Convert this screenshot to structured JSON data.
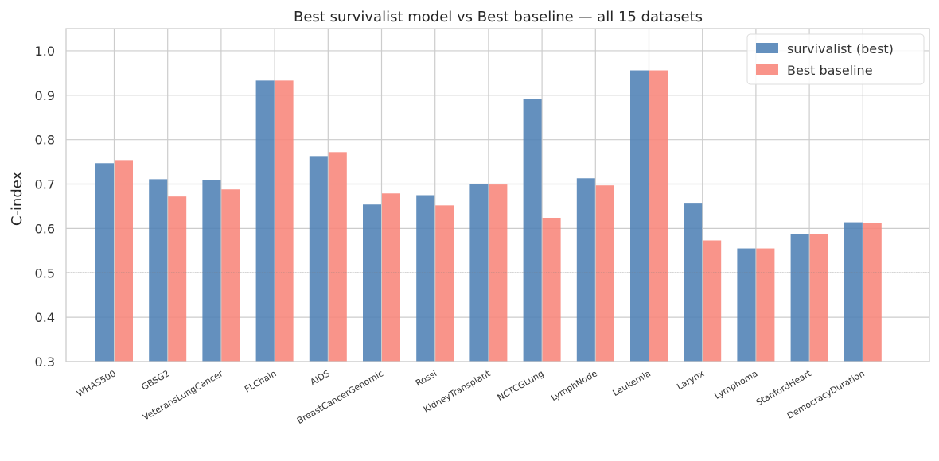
{
  "chart_data": {
    "type": "bar",
    "title": "Best survivalist model vs Best baseline — all 15 datasets",
    "xlabel": "",
    "ylabel": "C-index",
    "ylim": [
      0.3,
      1.05
    ],
    "yticks": [
      "0.3",
      "0.4",
      "0.5",
      "0.6",
      "0.7",
      "0.8",
      "0.9",
      "1.0"
    ],
    "grid": true,
    "reference_line": 0.5,
    "legend_position": "top-right",
    "categories": [
      "WHAS500",
      "GBSG2",
      "VeteransLungCancer",
      "FLChain",
      "AIDS",
      "BreastCancerGenomic",
      "Rossi",
      "KidneyTransplant",
      "NCTCGLung",
      "LymphNode",
      "Leukemia",
      "Larynx",
      "Lymphoma",
      "StanfordHeart",
      "DemocracyDuration"
    ],
    "series": [
      {
        "name": "survivalist (best)",
        "color": "#4e81b5",
        "values": [
          0.747,
          0.711,
          0.709,
          0.933,
          0.763,
          0.654,
          0.675,
          0.7,
          0.892,
          0.713,
          0.956,
          0.656,
          0.555,
          0.588,
          0.614
        ]
      },
      {
        "name": "Best baseline",
        "color": "#f8857a",
        "values": [
          0.754,
          0.672,
          0.688,
          0.933,
          0.772,
          0.679,
          0.652,
          0.699,
          0.624,
          0.697,
          0.956,
          0.573,
          0.555,
          0.588,
          0.613
        ]
      }
    ]
  }
}
